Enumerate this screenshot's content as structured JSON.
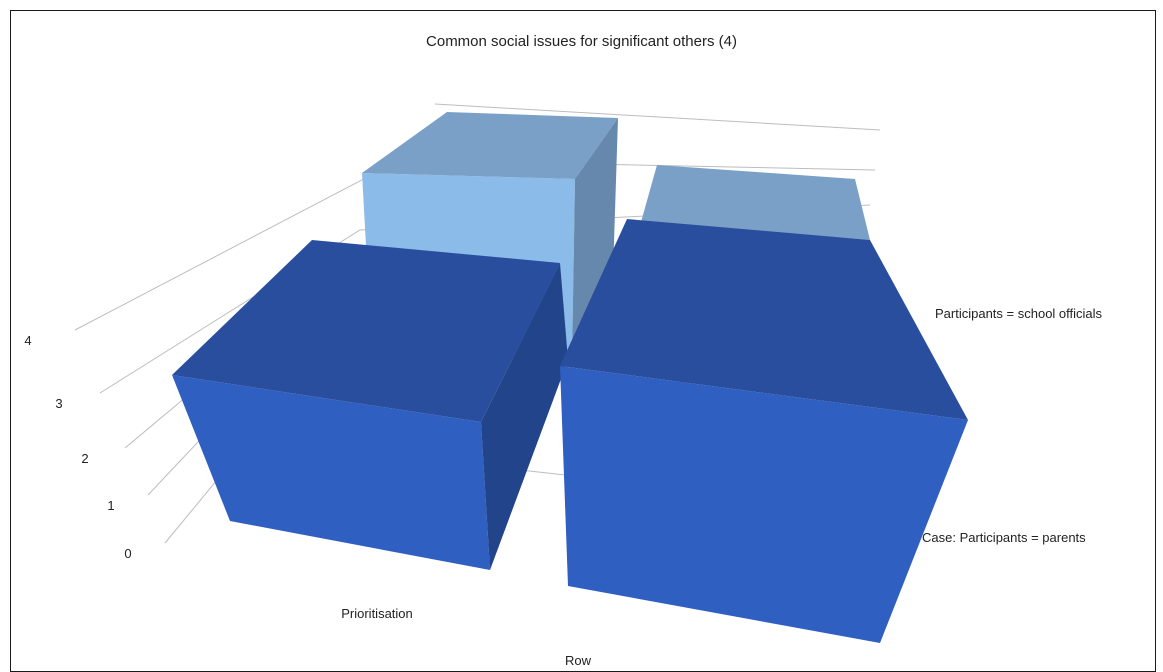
{
  "chart_data": {
    "type": "bar",
    "title": "Common social issues for significant others (4)",
    "xlabel": "Row",
    "categories": [
      "Prioritisation"
    ],
    "series_axis_labels": [
      "Participants = school officials",
      "Case: Participants = parents"
    ],
    "y_ticks": [
      "0",
      "1",
      "2",
      "3",
      "4"
    ],
    "ylim": [
      0,
      4
    ],
    "grid": true,
    "colors": {
      "front_face": "#2e5fc1",
      "front_top": "#2a4e9e",
      "front_side": "#22448a",
      "back_face": "#8bbbe9",
      "back_top": "#7aa0c8",
      "back_side": "#6688ad"
    }
  }
}
